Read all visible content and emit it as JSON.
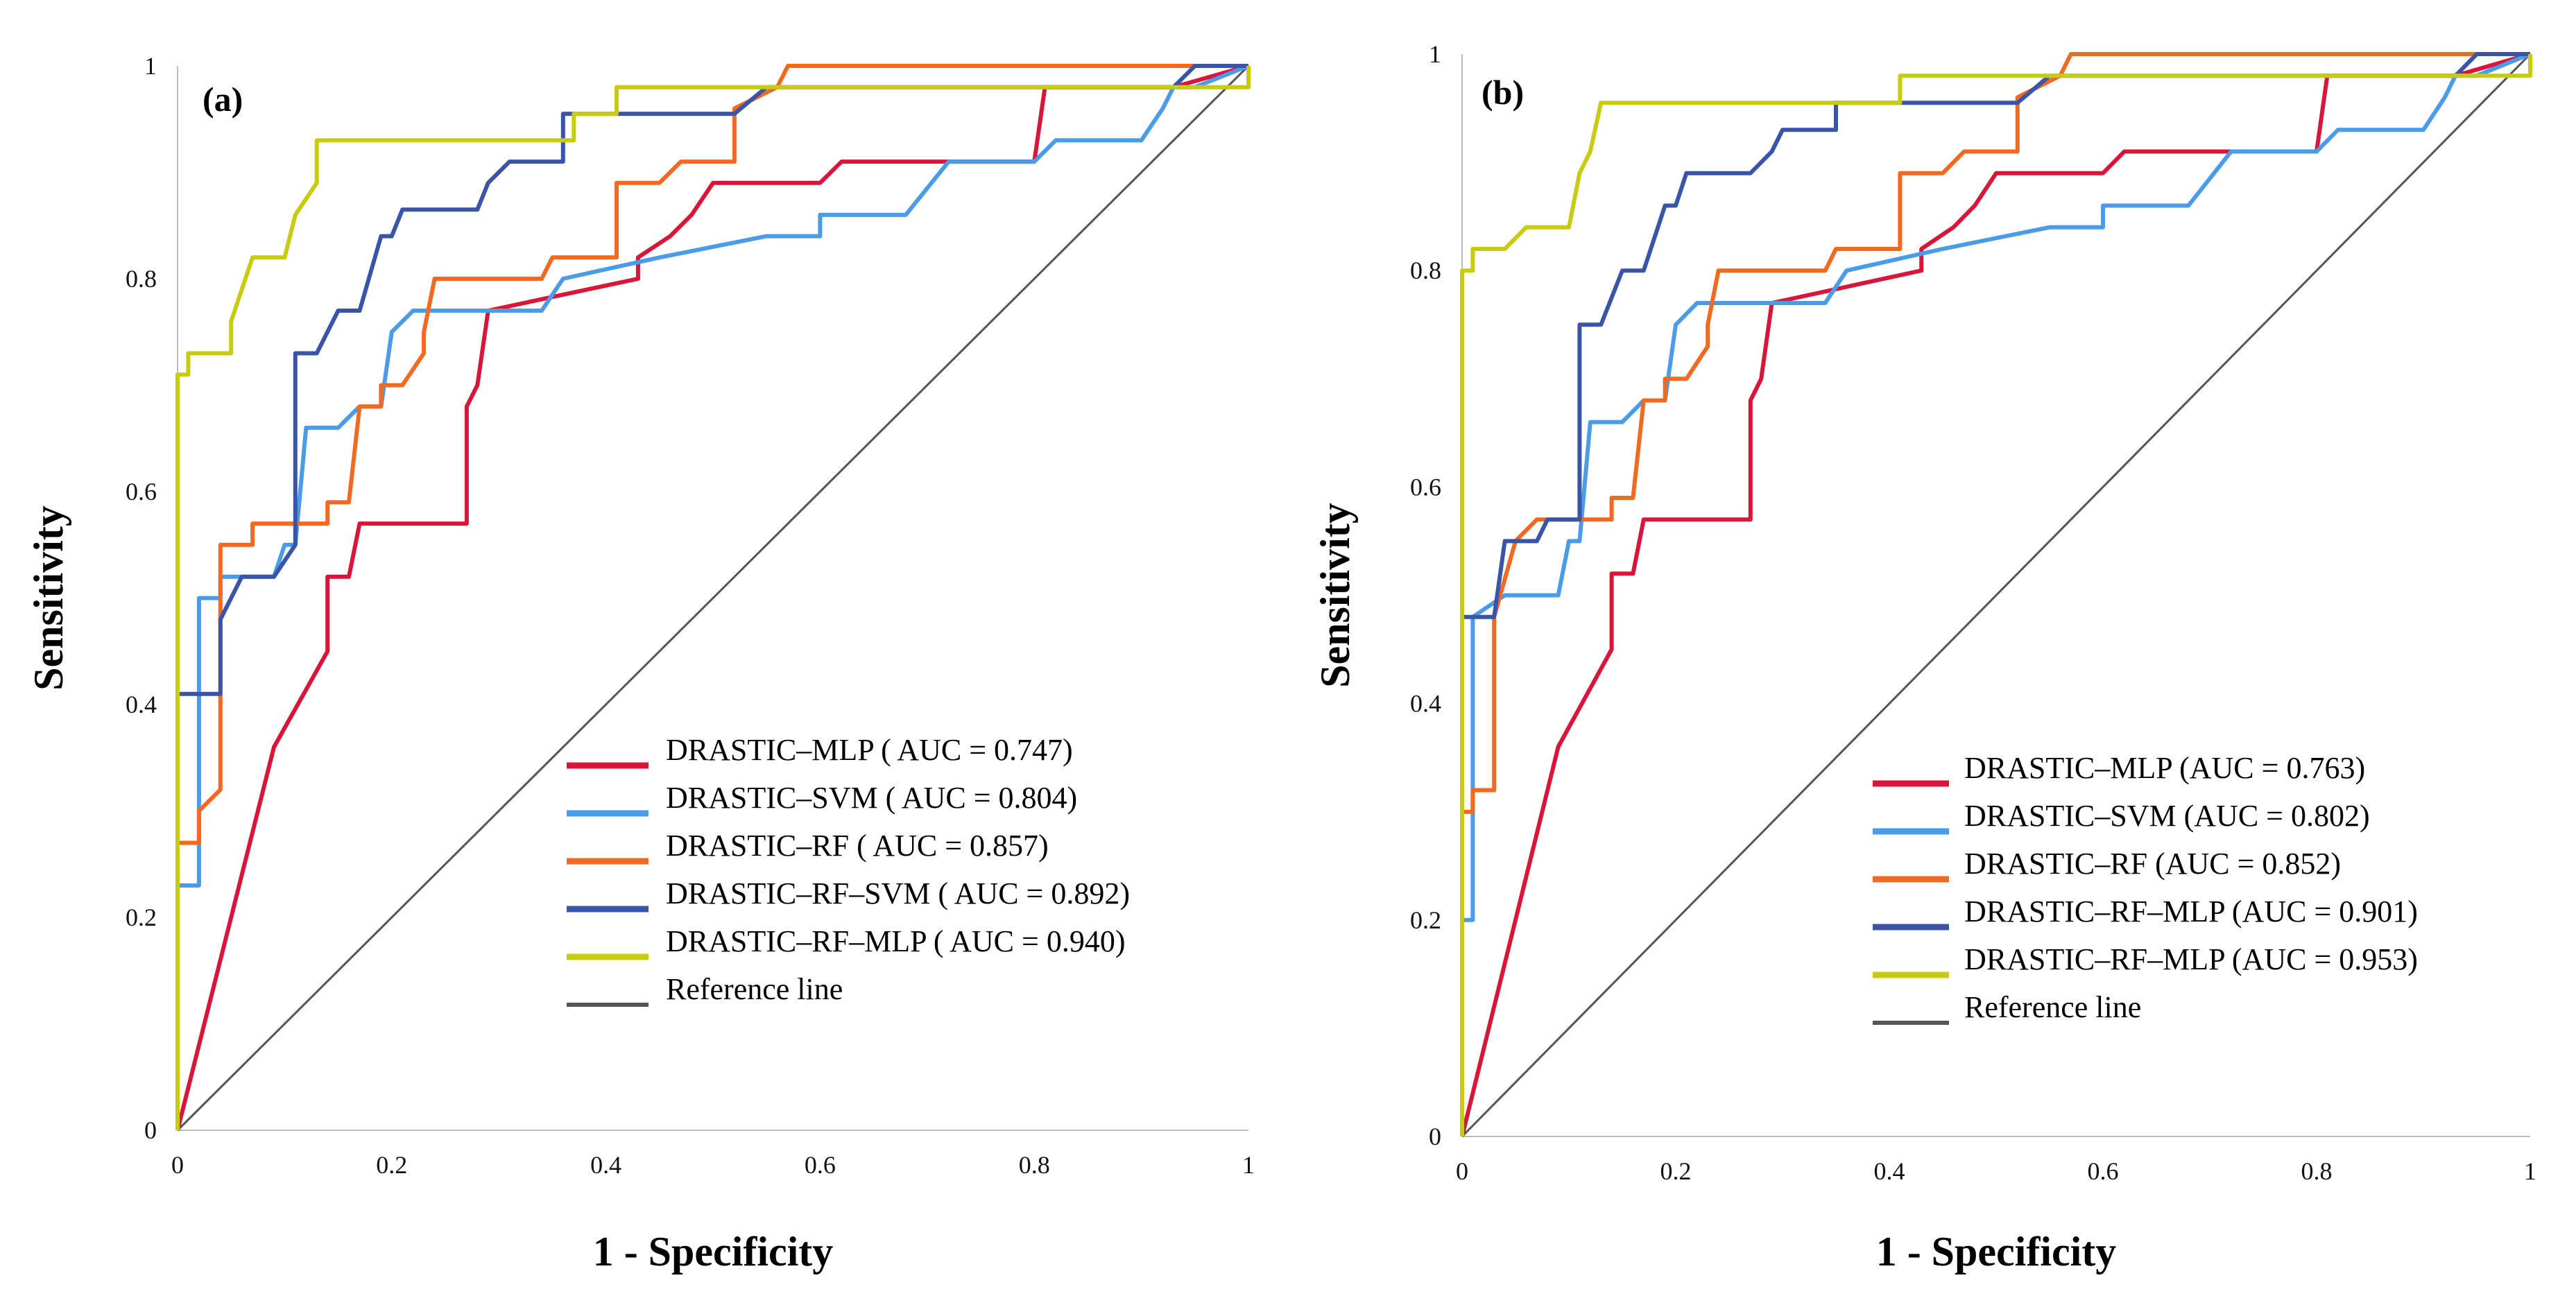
{
  "chart_data": [
    {
      "type": "line",
      "panel_label": "(a)",
      "xlabel": "1 - Specificity",
      "ylabel": "Sensitivity",
      "xlim": [
        0,
        1
      ],
      "ylim": [
        0,
        1
      ],
      "xticks": [
        "0",
        "0.2",
        "0.4",
        "0.6",
        "0.8",
        "1"
      ],
      "yticks": [
        "0",
        "0.2",
        "0.4",
        "0.6",
        "0.8",
        "1"
      ],
      "legend_position": "bottom-right",
      "series": [
        {
          "name": "DRASTIC–MLP ( AUC = 0.747)",
          "color": "#d9163a",
          "x": [
            0,
            0.09,
            0.14,
            0.14,
            0.16,
            0.17,
            0.27,
            0.27,
            0.28,
            0.29,
            0.43,
            0.43,
            0.46,
            0.48,
            0.5,
            0.6,
            0.62,
            0.8,
            0.81,
            0.93,
            1
          ],
          "y": [
            0,
            0.36,
            0.45,
            0.52,
            0.52,
            0.57,
            0.57,
            0.68,
            0.7,
            0.77,
            0.8,
            0.82,
            0.84,
            0.86,
            0.89,
            0.89,
            0.91,
            0.91,
            0.98,
            0.98,
            1
          ]
        },
        {
          "name": "DRASTIC–SVM ( AUC = 0.804)",
          "color": "#4a9be8",
          "x": [
            0,
            0,
            0.02,
            0.02,
            0.04,
            0.04,
            0.09,
            0.1,
            0.11,
            0.12,
            0.15,
            0.17,
            0.19,
            0.2,
            0.22,
            0.34,
            0.36,
            0.45,
            0.55,
            0.6,
            0.6,
            0.68,
            0.72,
            0.8,
            0.82,
            0.9,
            0.92,
            0.93,
            0.95,
            1
          ],
          "y": [
            0,
            0.23,
            0.23,
            0.5,
            0.5,
            0.52,
            0.52,
            0.55,
            0.55,
            0.66,
            0.66,
            0.68,
            0.68,
            0.75,
            0.77,
            0.77,
            0.8,
            0.82,
            0.84,
            0.84,
            0.86,
            0.86,
            0.91,
            0.91,
            0.93,
            0.93,
            0.96,
            0.98,
            0.98,
            1
          ]
        },
        {
          "name": "DRASTIC–RF ( AUC = 0.857)",
          "color": "#f26a22",
          "x": [
            0,
            0,
            0.02,
            0.02,
            0.04,
            0.04,
            0.07,
            0.07,
            0.14,
            0.14,
            0.16,
            0.17,
            0.19,
            0.19,
            0.21,
            0.23,
            0.23,
            0.24,
            0.34,
            0.35,
            0.41,
            0.41,
            0.45,
            0.47,
            0.52,
            0.52,
            0.56,
            0.57,
            1
          ],
          "y": [
            0,
            0.27,
            0.27,
            0.3,
            0.32,
            0.55,
            0.55,
            0.57,
            0.57,
            0.59,
            0.59,
            0.68,
            0.68,
            0.7,
            0.7,
            0.73,
            0.75,
            0.8,
            0.8,
            0.82,
            0.82,
            0.89,
            0.89,
            0.91,
            0.91,
            0.96,
            0.98,
            1,
            1
          ]
        },
        {
          "name": "DRASTIC–RF–SVM ( AUC = 0.892)",
          "color": "#3a55a8",
          "x": [
            0,
            0,
            0.04,
            0.04,
            0.06,
            0.09,
            0.11,
            0.11,
            0.13,
            0.15,
            0.17,
            0.19,
            0.2,
            0.21,
            0.28,
            0.29,
            0.31,
            0.36,
            0.36,
            0.52,
            0.55,
            0.93,
            0.95,
            1
          ],
          "y": [
            0,
            0.41,
            0.41,
            0.48,
            0.52,
            0.52,
            0.55,
            0.73,
            0.73,
            0.77,
            0.77,
            0.84,
            0.84,
            0.865,
            0.865,
            0.89,
            0.91,
            0.91,
            0.955,
            0.955,
            0.98,
            0.98,
            1,
            1
          ]
        },
        {
          "name": "DRASTIC–RF–MLP ( AUC = 0.940)",
          "color": "#c8cc10",
          "x": [
            0,
            0,
            0.01,
            0.01,
            0.05,
            0.05,
            0.07,
            0.1,
            0.11,
            0.13,
            0.13,
            0.37,
            0.37,
            0.41,
            0.41,
            1,
            1
          ],
          "y": [
            0,
            0.71,
            0.71,
            0.73,
            0.73,
            0.76,
            0.82,
            0.82,
            0.86,
            0.89,
            0.93,
            0.93,
            0.955,
            0.955,
            0.98,
            0.98,
            1
          ]
        },
        {
          "name": "Reference line",
          "color": "#555555",
          "x": [
            0,
            1
          ],
          "y": [
            0,
            1
          ]
        }
      ]
    },
    {
      "type": "line",
      "panel_label": "(b)",
      "xlabel": "1 - Specificity",
      "ylabel": "Sensitivity",
      "xlim": [
        0,
        1
      ],
      "ylim": [
        0,
        1
      ],
      "xticks": [
        "0",
        "0.2",
        "0.4",
        "0.6",
        "0.8",
        "1"
      ],
      "yticks": [
        "0",
        "0.2",
        "0.4",
        "0.6",
        "0.8",
        "1"
      ],
      "legend_position": "bottom-right",
      "series": [
        {
          "name": "DRASTIC–MLP (AUC = 0.763)",
          "color": "#d9163a",
          "x": [
            0,
            0.09,
            0.14,
            0.14,
            0.16,
            0.17,
            0.27,
            0.27,
            0.28,
            0.29,
            0.43,
            0.43,
            0.46,
            0.48,
            0.5,
            0.6,
            0.62,
            0.8,
            0.81,
            0.93,
            1
          ],
          "y": [
            0,
            0.36,
            0.45,
            0.52,
            0.52,
            0.57,
            0.57,
            0.68,
            0.7,
            0.77,
            0.8,
            0.82,
            0.84,
            0.86,
            0.89,
            0.89,
            0.91,
            0.91,
            0.98,
            0.98,
            1
          ]
        },
        {
          "name": "DRASTIC–SVM (AUC = 0.802)",
          "color": "#4a9be8",
          "x": [
            0,
            0,
            0.01,
            0.01,
            0.04,
            0.04,
            0.09,
            0.1,
            0.11,
            0.12,
            0.15,
            0.17,
            0.19,
            0.2,
            0.22,
            0.34,
            0.36,
            0.45,
            0.55,
            0.6,
            0.6,
            0.68,
            0.72,
            0.8,
            0.82,
            0.9,
            0.92,
            0.93,
            0.95,
            1
          ],
          "y": [
            0,
            0.2,
            0.2,
            0.48,
            0.5,
            0.5,
            0.5,
            0.55,
            0.55,
            0.66,
            0.66,
            0.68,
            0.68,
            0.75,
            0.77,
            0.77,
            0.8,
            0.82,
            0.84,
            0.84,
            0.86,
            0.86,
            0.91,
            0.91,
            0.93,
            0.93,
            0.96,
            0.98,
            0.98,
            1
          ]
        },
        {
          "name": "DRASTIC–RF (AUC = 0.852)",
          "color": "#f26a22",
          "x": [
            0,
            0,
            0.01,
            0.01,
            0.03,
            0.03,
            0.05,
            0.07,
            0.14,
            0.14,
            0.16,
            0.17,
            0.19,
            0.19,
            0.21,
            0.23,
            0.23,
            0.24,
            0.34,
            0.35,
            0.41,
            0.41,
            0.45,
            0.47,
            0.52,
            0.52,
            0.56,
            0.57,
            1
          ],
          "y": [
            0,
            0.3,
            0.3,
            0.32,
            0.32,
            0.48,
            0.55,
            0.57,
            0.57,
            0.59,
            0.59,
            0.68,
            0.68,
            0.7,
            0.7,
            0.73,
            0.75,
            0.8,
            0.8,
            0.82,
            0.82,
            0.89,
            0.89,
            0.91,
            0.91,
            0.96,
            0.98,
            1,
            1
          ]
        },
        {
          "name": "DRASTIC–RF–MLP (AUC = 0.901)",
          "color": "#3a55a8",
          "x": [
            0,
            0,
            0.03,
            0.04,
            0.07,
            0.08,
            0.11,
            0.11,
            0.13,
            0.15,
            0.17,
            0.19,
            0.2,
            0.21,
            0.27,
            0.29,
            0.3,
            0.35,
            0.35,
            0.52,
            0.55,
            0.93,
            0.95,
            1
          ],
          "y": [
            0,
            0.48,
            0.48,
            0.55,
            0.55,
            0.57,
            0.57,
            0.75,
            0.75,
            0.8,
            0.8,
            0.86,
            0.86,
            0.89,
            0.89,
            0.91,
            0.93,
            0.93,
            0.955,
            0.955,
            0.98,
            0.98,
            1,
            1
          ]
        },
        {
          "name": "DRASTIC–RF–MLP (AUC = 0.953)",
          "color": "#c8cc10",
          "x": [
            0,
            0,
            0.01,
            0.01,
            0.04,
            0.06,
            0.1,
            0.11,
            0.12,
            0.13,
            0.41,
            0.41,
            1,
            1
          ],
          "y": [
            0,
            0.8,
            0.8,
            0.82,
            0.82,
            0.84,
            0.84,
            0.89,
            0.91,
            0.955,
            0.955,
            0.98,
            0.98,
            1
          ]
        },
        {
          "name": "Reference line",
          "color": "#555555",
          "x": [
            0,
            1
          ],
          "y": [
            0,
            1
          ]
        }
      ]
    }
  ]
}
